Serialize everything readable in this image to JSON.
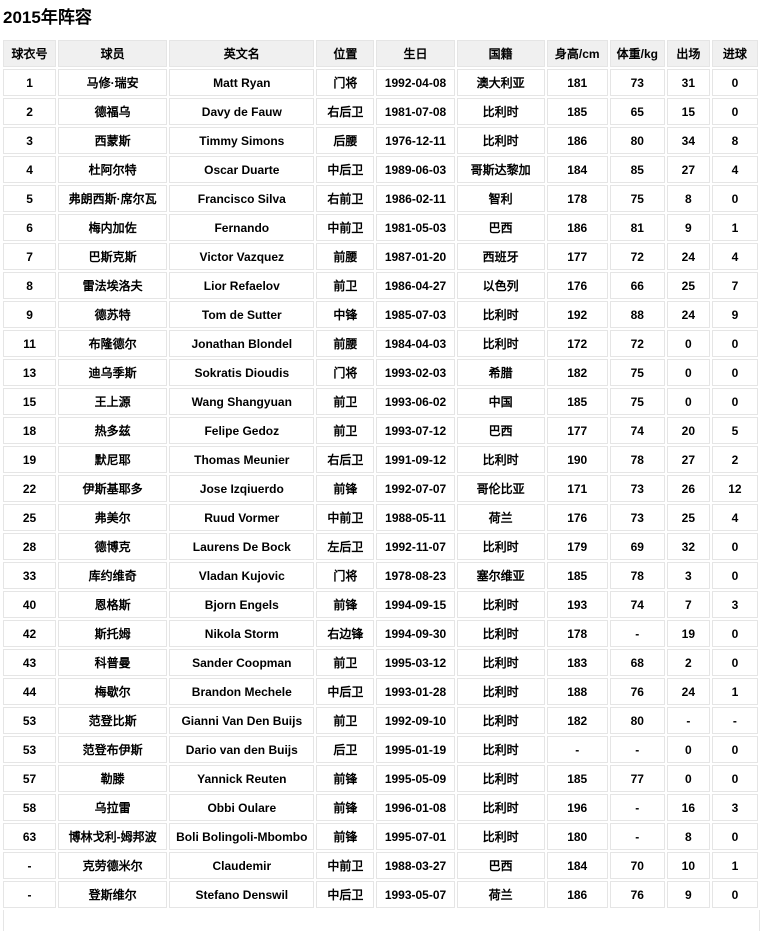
{
  "page_title": "2015年阵容",
  "colors": {
    "header_bg": "#f0f0f0",
    "border": "#e5e5e5",
    "text": "#000000",
    "page_bg": "#ffffff"
  },
  "table": {
    "columns": [
      "球衣号",
      "球员",
      "英文名",
      "位置",
      "生日",
      "国籍",
      "身高/cm",
      "体重/kg",
      "出场",
      "进球"
    ],
    "rows": [
      [
        "1",
        "马修·瑞安",
        "Matt Ryan",
        "门将",
        "1992-04-08",
        "澳大利亚",
        "181",
        "73",
        "31",
        "0"
      ],
      [
        "2",
        "德福乌",
        "Davy de Fauw",
        "右后卫",
        "1981-07-08",
        "比利时",
        "185",
        "65",
        "15",
        "0"
      ],
      [
        "3",
        "西蒙斯",
        "Timmy Simons",
        "后腰",
        "1976-12-11",
        "比利时",
        "186",
        "80",
        "34",
        "8"
      ],
      [
        "4",
        "杜阿尔特",
        "Oscar Duarte",
        "中后卫",
        "1989-06-03",
        "哥斯达黎加",
        "184",
        "85",
        "27",
        "4"
      ],
      [
        "5",
        "弗朗西斯·席尔瓦",
        "Francisco Silva",
        "右前卫",
        "1986-02-11",
        "智利",
        "178",
        "75",
        "8",
        "0"
      ],
      [
        "6",
        "梅内加佐",
        "Fernando",
        "中前卫",
        "1981-05-03",
        "巴西",
        "186",
        "81",
        "9",
        "1"
      ],
      [
        "7",
        "巴斯克斯",
        "Victor Vazquez",
        "前腰",
        "1987-01-20",
        "西班牙",
        "177",
        "72",
        "24",
        "4"
      ],
      [
        "8",
        "雷法埃洛夫",
        "Lior Refaelov",
        "前卫",
        "1986-04-27",
        "以色列",
        "176",
        "66",
        "25",
        "7"
      ],
      [
        "9",
        "德苏特",
        "Tom de Sutter",
        "中锋",
        "1985-07-03",
        "比利时",
        "192",
        "88",
        "24",
        "9"
      ],
      [
        "11",
        "布隆德尔",
        "Jonathan Blondel",
        "前腰",
        "1984-04-03",
        "比利时",
        "172",
        "72",
        "0",
        "0"
      ],
      [
        "13",
        "迪乌季斯",
        "Sokratis Dioudis",
        "门将",
        "1993-02-03",
        "希腊",
        "182",
        "75",
        "0",
        "0"
      ],
      [
        "15",
        "王上源",
        "Wang Shangyuan",
        "前卫",
        "1993-06-02",
        "中国",
        "185",
        "75",
        "0",
        "0"
      ],
      [
        "18",
        "热多兹",
        "Felipe Gedoz",
        "前卫",
        "1993-07-12",
        "巴西",
        "177",
        "74",
        "20",
        "5"
      ],
      [
        "19",
        "默尼耶",
        "Thomas Meunier",
        "右后卫",
        "1991-09-12",
        "比利时",
        "190",
        "78",
        "27",
        "2"
      ],
      [
        "22",
        "伊斯基耶多",
        "Jose Izqiuerdo",
        "前锋",
        "1992-07-07",
        "哥伦比亚",
        "171",
        "73",
        "26",
        "12"
      ],
      [
        "25",
        "弗美尔",
        "Ruud Vormer",
        "中前卫",
        "1988-05-11",
        "荷兰",
        "176",
        "73",
        "25",
        "4"
      ],
      [
        "28",
        "德博克",
        "Laurens De Bock",
        "左后卫",
        "1992-11-07",
        "比利时",
        "179",
        "69",
        "32",
        "0"
      ],
      [
        "33",
        "库约维奇",
        "Vladan Kujovic",
        "门将",
        "1978-08-23",
        "塞尔维亚",
        "185",
        "78",
        "3",
        "0"
      ],
      [
        "40",
        "恩格斯",
        "Bjorn Engels",
        "前锋",
        "1994-09-15",
        "比利时",
        "193",
        "74",
        "7",
        "3"
      ],
      [
        "42",
        "斯托姆",
        "Nikola Storm",
        "右边锋",
        "1994-09-30",
        "比利时",
        "178",
        "-",
        "19",
        "0"
      ],
      [
        "43",
        "科普曼",
        "Sander Coopman",
        "前卫",
        "1995-03-12",
        "比利时",
        "183",
        "68",
        "2",
        "0"
      ],
      [
        "44",
        "梅歇尔",
        "Brandon Mechele",
        "中后卫",
        "1993-01-28",
        "比利时",
        "188",
        "76",
        "24",
        "1"
      ],
      [
        "53",
        "范登比斯",
        "Gianni Van Den Buijs",
        "前卫",
        "1992-09-10",
        "比利时",
        "182",
        "80",
        "-",
        "-"
      ],
      [
        "53",
        "范登布伊斯",
        "Dario van den Buijs",
        "后卫",
        "1995-01-19",
        "比利时",
        "-",
        "-",
        "0",
        "0"
      ],
      [
        "57",
        "勒滕",
        "Yannick Reuten",
        "前锋",
        "1995-05-09",
        "比利时",
        "185",
        "77",
        "0",
        "0"
      ],
      [
        "58",
        "乌拉雷",
        "Obbi Oulare",
        "前锋",
        "1996-01-08",
        "比利时",
        "196",
        "-",
        "16",
        "3"
      ],
      [
        "63",
        "博林戈利-姆邦波",
        "Boli Bolingoli-Mbombo",
        "前锋",
        "1995-07-01",
        "比利时",
        "180",
        "-",
        "8",
        "0"
      ],
      [
        "-",
        "克劳德米尔",
        "Claudemir",
        "中前卫",
        "1988-03-27",
        "巴西",
        "184",
        "70",
        "10",
        "1"
      ],
      [
        "-",
        "登斯维尔",
        "Stefano Denswil",
        "中后卫",
        "1993-05-07",
        "荷兰",
        "186",
        "76",
        "9",
        "0"
      ]
    ]
  }
}
